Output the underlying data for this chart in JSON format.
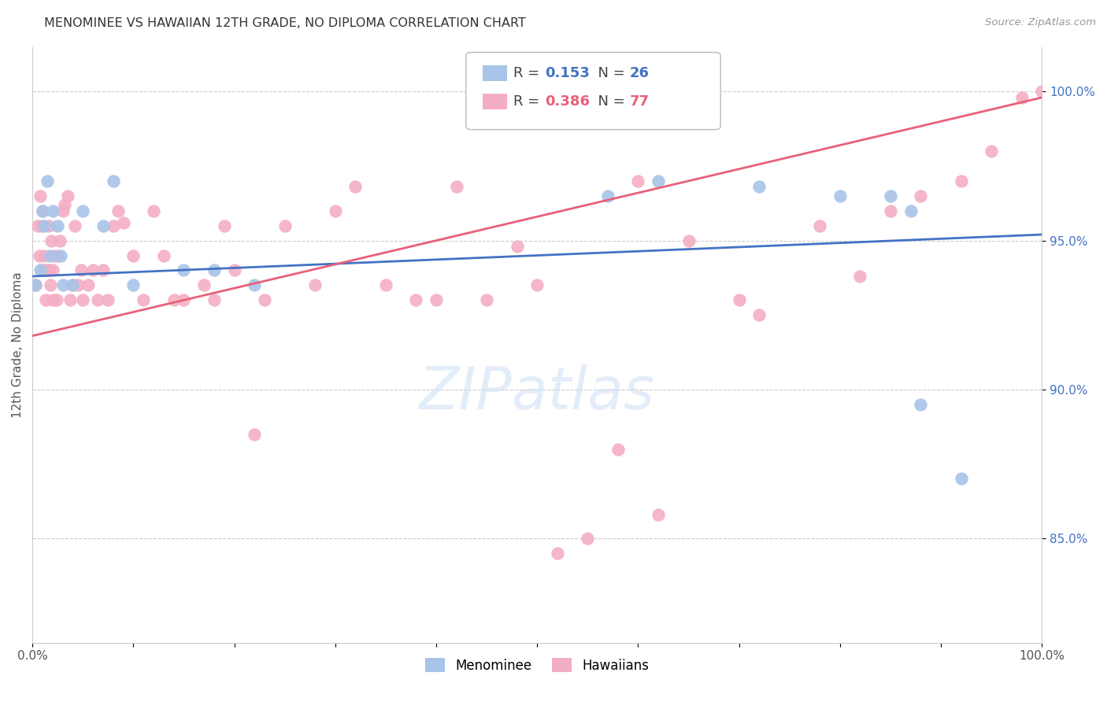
{
  "title": "MENOMINEE VS HAWAIIAN 12TH GRADE, NO DIPLOMA CORRELATION CHART",
  "source": "Source: ZipAtlas.com",
  "ylabel": "12th Grade, No Diploma",
  "xlabel": "",
  "xlim": [
    0.0,
    1.0
  ],
  "ylim": [
    0.815,
    1.015
  ],
  "yticks": [
    0.85,
    0.9,
    0.95,
    1.0
  ],
  "ytick_labels": [
    "85.0%",
    "90.0%",
    "95.0%",
    "100.0%"
  ],
  "xticks": [
    0.0,
    0.1,
    0.2,
    0.3,
    0.4,
    0.5,
    0.6,
    0.7,
    0.8,
    0.9,
    1.0
  ],
  "xtick_labels": [
    "0.0%",
    "",
    "",
    "",
    "",
    "",
    "",
    "",
    "",
    "",
    "100.0%"
  ],
  "menominee_R": 0.153,
  "menominee_N": 26,
  "hawaiian_R": 0.386,
  "hawaiian_N": 77,
  "menominee_color": "#a8c4e8",
  "hawaiian_color": "#f4aec4",
  "trendline_blue": "#4472c4",
  "trendline_pink": "#e8607a",
  "background_color": "#ffffff",
  "grid_color": "#cccccc",
  "menominee_x": [
    0.003,
    0.008,
    0.01,
    0.012,
    0.015,
    0.018,
    0.02,
    0.025,
    0.028,
    0.03,
    0.04,
    0.05,
    0.07,
    0.08,
    0.1,
    0.15,
    0.18,
    0.22,
    0.57,
    0.62,
    0.72,
    0.8,
    0.85,
    0.87,
    0.88,
    0.92
  ],
  "menominee_y": [
    0.935,
    0.94,
    0.96,
    0.955,
    0.97,
    0.945,
    0.96,
    0.955,
    0.945,
    0.935,
    0.935,
    0.96,
    0.955,
    0.97,
    0.935,
    0.94,
    0.94,
    0.935,
    0.965,
    0.97,
    0.968,
    0.965,
    0.965,
    0.96,
    0.895,
    0.87
  ],
  "hawaiian_x": [
    0.003,
    0.005,
    0.007,
    0.008,
    0.009,
    0.01,
    0.01,
    0.012,
    0.013,
    0.014,
    0.015,
    0.016,
    0.017,
    0.018,
    0.019,
    0.02,
    0.02,
    0.022,
    0.024,
    0.025,
    0.027,
    0.03,
    0.032,
    0.035,
    0.037,
    0.04,
    0.042,
    0.045,
    0.048,
    0.05,
    0.055,
    0.06,
    0.065,
    0.07,
    0.075,
    0.08,
    0.085,
    0.09,
    0.1,
    0.11,
    0.12,
    0.13,
    0.14,
    0.15,
    0.17,
    0.18,
    0.19,
    0.2,
    0.22,
    0.23,
    0.25,
    0.28,
    0.3,
    0.32,
    0.35,
    0.38,
    0.4,
    0.42,
    0.45,
    0.48,
    0.5,
    0.52,
    0.55,
    0.58,
    0.6,
    0.62,
    0.65,
    0.7,
    0.72,
    0.78,
    0.82,
    0.85,
    0.88,
    0.92,
    0.95,
    0.98,
    1.0
  ],
  "hawaiian_y": [
    0.935,
    0.955,
    0.945,
    0.965,
    0.955,
    0.94,
    0.96,
    0.945,
    0.93,
    0.94,
    0.94,
    0.955,
    0.94,
    0.935,
    0.95,
    0.93,
    0.94,
    0.945,
    0.93,
    0.945,
    0.95,
    0.96,
    0.962,
    0.965,
    0.93,
    0.935,
    0.955,
    0.935,
    0.94,
    0.93,
    0.935,
    0.94,
    0.93,
    0.94,
    0.93,
    0.955,
    0.96,
    0.956,
    0.945,
    0.93,
    0.96,
    0.945,
    0.93,
    0.93,
    0.935,
    0.93,
    0.955,
    0.94,
    0.885,
    0.93,
    0.955,
    0.935,
    0.96,
    0.968,
    0.935,
    0.93,
    0.93,
    0.968,
    0.93,
    0.948,
    0.935,
    0.845,
    0.85,
    0.88,
    0.97,
    0.858,
    0.95,
    0.93,
    0.925,
    0.955,
    0.938,
    0.96,
    0.965,
    0.97,
    0.98,
    0.998,
    1.0
  ]
}
